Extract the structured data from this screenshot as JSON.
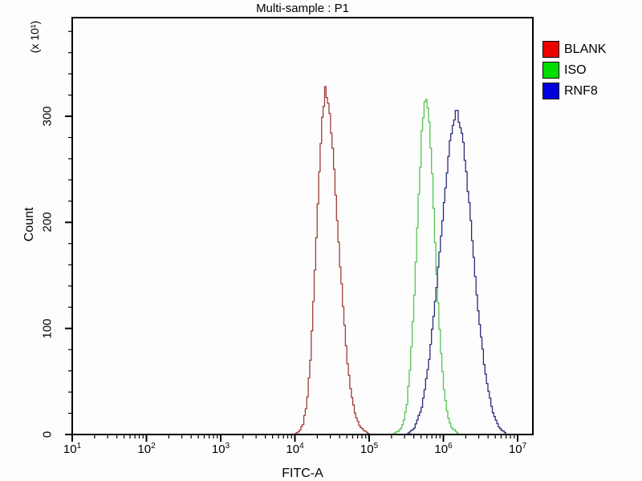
{
  "title": "Multi-sample : P1",
  "axes": {
    "x": {
      "label": "FITC-A",
      "scale": "log10",
      "tick_base": "10",
      "tick_exponents": [
        1,
        2,
        3,
        4,
        5,
        6,
        7
      ],
      "min": 10,
      "max": 16000000
    },
    "y": {
      "label": "Count",
      "multiplier": "(x 10¹)",
      "major_ticks": [
        0,
        100,
        200,
        300
      ],
      "minor_step": 20,
      "max_display": 393
    }
  },
  "legend": {
    "items": [
      {
        "label": "BLANK",
        "swatch_color": "#ee0000"
      },
      {
        "label": "ISO",
        "swatch_color": "#00dd00"
      },
      {
        "label": "RNF8",
        "swatch_color": "#0000dd"
      }
    ]
  },
  "colors": {
    "frame": "#000000",
    "background": "#fdfdfd"
  },
  "chart_data": {
    "type": "line",
    "subtype": "flow-cytometry-histogram-overlay",
    "title": "Multi-sample : P1",
    "xlabel": "FITC-A",
    "ylabel": "Count",
    "y_units_note": "counts shown in units of x10^1",
    "x_scale": "log10",
    "xlim": [
      10,
      16000000
    ],
    "ylim": [
      0,
      393
    ],
    "grid": false,
    "legend_position": "outside-top-right",
    "series": [
      {
        "name": "BLANK",
        "curve_color": "#a03b38",
        "peak_x": 25000,
        "peak_log10": 4.4,
        "peak_count_display": 328,
        "points_log10x_count": [
          [
            3.98,
            0
          ],
          [
            4.05,
            3
          ],
          [
            4.1,
            10
          ],
          [
            4.15,
            28
          ],
          [
            4.2,
            70
          ],
          [
            4.25,
            140
          ],
          [
            4.3,
            215
          ],
          [
            4.35,
            290
          ],
          [
            4.4,
            328
          ],
          [
            4.45,
            310
          ],
          [
            4.5,
            268
          ],
          [
            4.55,
            215
          ],
          [
            4.6,
            160
          ],
          [
            4.65,
            110
          ],
          [
            4.7,
            68
          ],
          [
            4.75,
            38
          ],
          [
            4.8,
            20
          ],
          [
            4.85,
            10
          ],
          [
            4.9,
            5
          ],
          [
            5.0,
            0
          ]
        ]
      },
      {
        "name": "ISO",
        "curve_color": "#55c455",
        "peak_x": 560000,
        "peak_log10": 5.75,
        "peak_count_display": 323,
        "points_log10x_count": [
          [
            5.3,
            0
          ],
          [
            5.4,
            4
          ],
          [
            5.45,
            10
          ],
          [
            5.5,
            28
          ],
          [
            5.55,
            70
          ],
          [
            5.6,
            130
          ],
          [
            5.65,
            210
          ],
          [
            5.7,
            285
          ],
          [
            5.75,
            323
          ],
          [
            5.8,
            295
          ],
          [
            5.85,
            230
          ],
          [
            5.9,
            150
          ],
          [
            5.95,
            85
          ],
          [
            6.0,
            42
          ],
          [
            6.05,
            18
          ],
          [
            6.1,
            7
          ],
          [
            6.2,
            0
          ]
        ]
      },
      {
        "name": "RNF8",
        "curve_color": "#2a2a78",
        "peak_x": 1480000,
        "peak_log10": 6.17,
        "peak_count_display": 307,
        "points_log10x_count": [
          [
            5.5,
            0
          ],
          [
            5.6,
            6
          ],
          [
            5.7,
            25
          ],
          [
            5.8,
            70
          ],
          [
            5.9,
            140
          ],
          [
            6.0,
            220
          ],
          [
            6.08,
            275
          ],
          [
            6.17,
            307
          ],
          [
            6.25,
            280
          ],
          [
            6.35,
            210
          ],
          [
            6.45,
            125
          ],
          [
            6.55,
            60
          ],
          [
            6.65,
            22
          ],
          [
            6.75,
            6
          ],
          [
            6.85,
            0
          ]
        ]
      }
    ]
  }
}
